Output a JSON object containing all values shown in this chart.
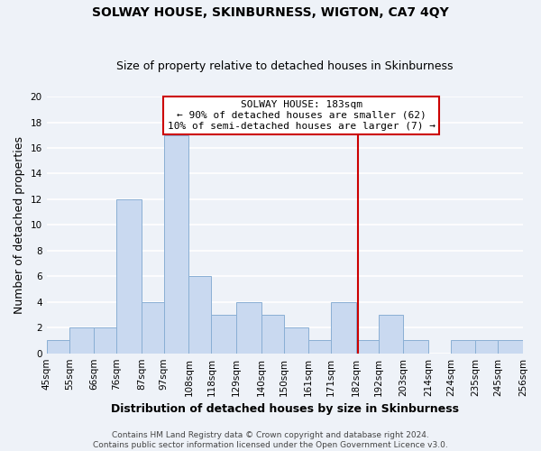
{
  "title": "SOLWAY HOUSE, SKINBURNESS, WIGTON, CA7 4QY",
  "subtitle": "Size of property relative to detached houses in Skinburness",
  "xlabel": "Distribution of detached houses by size in Skinburness",
  "ylabel": "Number of detached properties",
  "bin_edges": [
    45,
    55,
    66,
    76,
    87,
    97,
    108,
    118,
    129,
    140,
    150,
    161,
    171,
    182,
    192,
    203,
    214,
    224,
    235,
    245,
    256
  ],
  "counts": [
    1,
    2,
    2,
    12,
    4,
    17,
    6,
    3,
    4,
    3,
    2,
    1,
    4,
    1,
    3,
    1,
    0,
    1,
    1,
    1
  ],
  "bar_color": "#c9d9f0",
  "bar_edge_color": "#8aafd4",
  "reference_line_x": 183,
  "reference_line_color": "#cc0000",
  "ylim": [
    0,
    20
  ],
  "yticks": [
    0,
    2,
    4,
    6,
    8,
    10,
    12,
    14,
    16,
    18,
    20
  ],
  "tick_labels": [
    "45sqm",
    "55sqm",
    "66sqm",
    "76sqm",
    "87sqm",
    "97sqm",
    "108sqm",
    "118sqm",
    "129sqm",
    "140sqm",
    "150sqm",
    "161sqm",
    "171sqm",
    "182sqm",
    "192sqm",
    "203sqm",
    "214sqm",
    "224sqm",
    "235sqm",
    "245sqm",
    "256sqm"
  ],
  "annotation_title": "SOLWAY HOUSE: 183sqm",
  "annotation_line1": "← 90% of detached houses are smaller (62)",
  "annotation_line2": "10% of semi-detached houses are larger (7) →",
  "annotation_box_color": "#ffffff",
  "annotation_box_edge_color": "#cc0000",
  "footer_line1": "Contains HM Land Registry data © Crown copyright and database right 2024.",
  "footer_line2": "Contains public sector information licensed under the Open Government Licence v3.0.",
  "background_color": "#eef2f8",
  "grid_color": "#ffffff",
  "title_fontsize": 10,
  "subtitle_fontsize": 9,
  "axis_label_fontsize": 9,
  "tick_fontsize": 7.5,
  "annotation_fontsize": 8,
  "footer_fontsize": 6.5
}
